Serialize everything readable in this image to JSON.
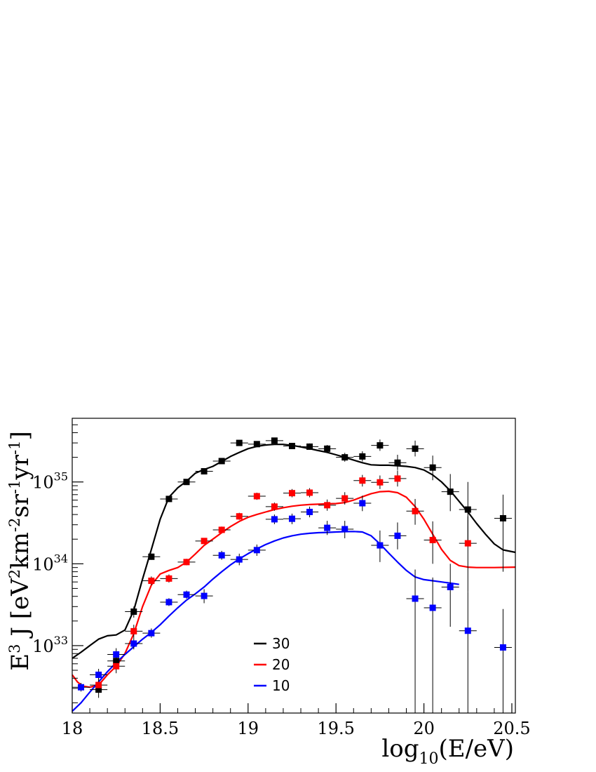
{
  "chart_data": {
    "type": "scatter",
    "title": "",
    "xlabel": {
      "main": "log",
      "sub": "10",
      "rest": "(E/eV)"
    },
    "ylabel": {
      "p1": "E",
      "p1sup": "3",
      "p2": " J [eV",
      "p2sup": "2",
      "p3": "km",
      "p3sup": "-2",
      "p4": "sr",
      "p4sup": "-1",
      "p5": "yr",
      "p5sup": "-1",
      "p6": "]"
    },
    "xlim": [
      18.0,
      20.52
    ],
    "ylim": [
      1.5e+32,
      6e+35
    ],
    "yscale": "log",
    "x_ticks": [
      {
        "value": 18.0,
        "label": "18"
      },
      {
        "value": 18.5,
        "label": "18.5"
      },
      {
        "value": 19.0,
        "label": "19"
      },
      {
        "value": 19.5,
        "label": "19.5"
      },
      {
        "value": 20.0,
        "label": "20"
      },
      {
        "value": 20.5,
        "label": "20.5"
      }
    ],
    "y_ticks": [
      {
        "value": 1e+33,
        "base": "10",
        "exp": "33"
      },
      {
        "value": 1e+34,
        "base": "10",
        "exp": "34"
      },
      {
        "value": 1e+35,
        "base": "10",
        "exp": "35"
      }
    ],
    "legend": {
      "placement": "bottom-center"
    },
    "series": [
      {
        "name": "30",
        "color": "#000000",
        "points": [
          {
            "x": 18.15,
            "y": 2.9e+32,
            "lo": 2.3e+32,
            "hi": 3.6e+32
          },
          {
            "x": 18.25,
            "y": 6.5e+32,
            "lo": 5.3e+32,
            "hi": 8e+32
          },
          {
            "x": 18.35,
            "y": 2.6e+33,
            "lo": 2.2e+33,
            "hi": 3e+33
          },
          {
            "x": 18.45,
            "y": 1.22e+34,
            "lo": 1.12e+34,
            "hi": 1.33e+34
          },
          {
            "x": 18.55,
            "y": 6.2e+34,
            "lo": 5.8e+34,
            "hi": 6.6e+34
          },
          {
            "x": 18.65,
            "y": 1e+35,
            "lo": 9.4e+34,
            "hi": 1.06e+35
          },
          {
            "x": 18.75,
            "y": 1.35e+35,
            "lo": 1.27e+35,
            "hi": 1.44e+35
          },
          {
            "x": 18.85,
            "y": 1.8e+35,
            "lo": 1.7e+35,
            "hi": 1.91e+35
          },
          {
            "x": 18.95,
            "y": 3e+35,
            "lo": 2.82e+35,
            "hi": 3.2e+35
          },
          {
            "x": 19.05,
            "y": 2.9e+35,
            "lo": 2.72e+35,
            "hi": 3.1e+35
          },
          {
            "x": 19.15,
            "y": 3.2e+35,
            "lo": 2.98e+35,
            "hi": 3.45e+35
          },
          {
            "x": 19.25,
            "y": 2.75e+35,
            "lo": 2.53e+35,
            "hi": 3e+35
          },
          {
            "x": 19.35,
            "y": 2.7e+35,
            "lo": 2.47e+35,
            "hi": 2.96e+35
          },
          {
            "x": 19.45,
            "y": 2.55e+35,
            "lo": 2.3e+35,
            "hi": 2.83e+35
          },
          {
            "x": 19.55,
            "y": 2e+35,
            "lo": 1.77e+35,
            "hi": 2.27e+35
          },
          {
            "x": 19.65,
            "y": 2.05e+35,
            "lo": 1.78e+35,
            "hi": 2.37e+35
          },
          {
            "x": 19.75,
            "y": 2.8e+35,
            "lo": 2.4e+35,
            "hi": 3.3e+35
          },
          {
            "x": 19.85,
            "y": 1.72e+35,
            "lo": 1.4e+35,
            "hi": 2.15e+35
          },
          {
            "x": 19.95,
            "y": 2.55e+35,
            "lo": 2.05e+35,
            "hi": 3.2e+35
          },
          {
            "x": 20.05,
            "y": 1.5e+35,
            "lo": 1.05e+35,
            "hi": 2.1e+35
          },
          {
            "x": 20.15,
            "y": 7.6e+34,
            "lo": 4.4e+34,
            "hi": 1.25e+35
          },
          {
            "x": 20.25,
            "y": 4.6e+34,
            "lo": 1.8e+34,
            "hi": 1e+35
          },
          {
            "x": 20.45,
            "y": 3.6e+34,
            "lo": 8e+33,
            "hi": 7e+34
          }
        ],
        "curve": [
          [
            18.0,
            7e+32
          ],
          [
            18.05,
            8.3e+32
          ],
          [
            18.1,
            1e+33
          ],
          [
            18.15,
            1.2e+33
          ],
          [
            18.2,
            1.32e+33
          ],
          [
            18.25,
            1.35e+33
          ],
          [
            18.3,
            1.55e+33
          ],
          [
            18.35,
            2.7e+33
          ],
          [
            18.4,
            6.5e+33
          ],
          [
            18.45,
            1.5e+34
          ],
          [
            18.5,
            3.5e+34
          ],
          [
            18.55,
            6.5e+34
          ],
          [
            18.6,
            8.5e+34
          ],
          [
            18.65,
            1.02e+35
          ],
          [
            18.7,
            1.28e+35
          ],
          [
            18.75,
            1.42e+35
          ],
          [
            18.8,
            1.55e+35
          ],
          [
            18.85,
            1.78e+35
          ],
          [
            18.9,
            2.05e+35
          ],
          [
            18.95,
            2.3e+35
          ],
          [
            19.0,
            2.55e+35
          ],
          [
            19.05,
            2.72e+35
          ],
          [
            19.1,
            2.83e+35
          ],
          [
            19.15,
            2.88e+35
          ],
          [
            19.2,
            2.88e+35
          ],
          [
            19.25,
            2.8e+35
          ],
          [
            19.3,
            2.68e+35
          ],
          [
            19.35,
            2.55e+35
          ],
          [
            19.4,
            2.42e+35
          ],
          [
            19.45,
            2.3e+35
          ],
          [
            19.5,
            2.15e+35
          ],
          [
            19.55,
            2e+35
          ],
          [
            19.6,
            1.85e+35
          ],
          [
            19.65,
            1.72e+35
          ],
          [
            19.7,
            1.62e+35
          ],
          [
            19.75,
            1.6e+35
          ],
          [
            19.8,
            1.6e+35
          ],
          [
            19.85,
            1.58e+35
          ],
          [
            19.9,
            1.55e+35
          ],
          [
            19.95,
            1.5e+35
          ],
          [
            20.0,
            1.4e+35
          ],
          [
            20.05,
            1.22e+35
          ],
          [
            20.1,
            1e+35
          ],
          [
            20.15,
            7.8e+34
          ],
          [
            20.2,
            5.8e+34
          ],
          [
            20.25,
            4.3e+34
          ],
          [
            20.3,
            3.1e+34
          ],
          [
            20.35,
            2.3e+34
          ],
          [
            20.4,
            1.75e+34
          ],
          [
            20.45,
            1.48e+34
          ],
          [
            20.52,
            1.38e+34
          ]
        ]
      },
      {
        "name": "20",
        "color": "#ff0000",
        "points": [
          {
            "x": 18.15,
            "y": 3.3e+32,
            "lo": 2.7e+32,
            "hi": 4e+32
          },
          {
            "x": 18.25,
            "y": 5.6e+32,
            "lo": 4.6e+32,
            "hi": 6.8e+32
          },
          {
            "x": 18.35,
            "y": 1.5e+33,
            "lo": 1.25e+33,
            "hi": 1.8e+33
          },
          {
            "x": 18.45,
            "y": 6.2e+33,
            "lo": 5.5e+33,
            "hi": 7e+33
          },
          {
            "x": 18.55,
            "y": 6.6e+33,
            "lo": 5.9e+33,
            "hi": 7.4e+33
          },
          {
            "x": 18.65,
            "y": 1.05e+34,
            "lo": 9.6e+33,
            "hi": 1.15e+34
          },
          {
            "x": 18.75,
            "y": 1.9e+34,
            "lo": 1.75e+34,
            "hi": 2.05e+34
          },
          {
            "x": 18.85,
            "y": 2.6e+34,
            "lo": 2.38e+34,
            "hi": 2.85e+34
          },
          {
            "x": 18.95,
            "y": 3.8e+34,
            "lo": 3.45e+34,
            "hi": 4.2e+34
          },
          {
            "x": 19.05,
            "y": 6.7e+34,
            "lo": 6.05e+34,
            "hi": 7.4e+34
          },
          {
            "x": 19.15,
            "y": 5e+34,
            "lo": 4.45e+34,
            "hi": 5.6e+34
          },
          {
            "x": 19.25,
            "y": 7.3e+34,
            "lo": 6.5e+34,
            "hi": 8.2e+34
          },
          {
            "x": 19.35,
            "y": 7.4e+34,
            "lo": 6.5e+34,
            "hi": 8.4e+34
          },
          {
            "x": 19.45,
            "y": 5.2e+34,
            "lo": 4.45e+34,
            "hi": 6.1e+34
          },
          {
            "x": 19.55,
            "y": 6.3e+34,
            "lo": 5.3e+34,
            "hi": 7.5e+34
          },
          {
            "x": 19.65,
            "y": 1.04e+35,
            "lo": 8.8e+34,
            "hi": 1.22e+35
          },
          {
            "x": 19.75,
            "y": 9.9e+34,
            "lo": 8.2e+34,
            "hi": 1.2e+35
          },
          {
            "x": 19.85,
            "y": 1.1e+35,
            "lo": 8.8e+34,
            "hi": 1.38e+35
          },
          {
            "x": 19.95,
            "y": 4.4e+34,
            "lo": 3e+34,
            "hi": 6.2e+34
          },
          {
            "x": 20.05,
            "y": 1.95e+34,
            "lo": 1e+34,
            "hi": 3.3e+34
          },
          {
            "x": 20.25,
            "y": 1.78e+34,
            "lo": 4.5e+33,
            "hi": 3.8e+34
          }
        ],
        "curve": [
          [
            18.0,
            4.4e+32
          ],
          [
            18.03,
            3.6e+32
          ],
          [
            18.06,
            3.2e+32
          ],
          [
            18.1,
            3.1e+32
          ],
          [
            18.15,
            3.3e+32
          ],
          [
            18.2,
            4.4e+32
          ],
          [
            18.25,
            5.6e+32
          ],
          [
            18.3,
            8e+32
          ],
          [
            18.35,
            1.4e+33
          ],
          [
            18.4,
            3e+33
          ],
          [
            18.45,
            5.5e+33
          ],
          [
            18.5,
            7.5e+33
          ],
          [
            18.55,
            8.3e+33
          ],
          [
            18.6,
            9e+33
          ],
          [
            18.65,
            1.05e+34
          ],
          [
            18.7,
            1.32e+34
          ],
          [
            18.75,
            1.68e+34
          ],
          [
            18.8,
            2e+34
          ],
          [
            18.85,
            2.4e+34
          ],
          [
            18.9,
            2.85e+34
          ],
          [
            18.95,
            3.3e+34
          ],
          [
            19.0,
            3.7e+34
          ],
          [
            19.05,
            4e+34
          ],
          [
            19.1,
            4.3e+34
          ],
          [
            19.15,
            4.6e+34
          ],
          [
            19.2,
            4.85e+34
          ],
          [
            19.25,
            5.05e+34
          ],
          [
            19.3,
            5.2e+34
          ],
          [
            19.35,
            5.3e+34
          ],
          [
            19.4,
            5.35e+34
          ],
          [
            19.45,
            5.4e+34
          ],
          [
            19.5,
            5.45e+34
          ],
          [
            19.55,
            5.6e+34
          ],
          [
            19.6,
            6e+34
          ],
          [
            19.65,
            6.6e+34
          ],
          [
            19.7,
            7.2e+34
          ],
          [
            19.75,
            7.6e+34
          ],
          [
            19.8,
            7.7e+34
          ],
          [
            19.85,
            7.4e+34
          ],
          [
            19.9,
            6.5e+34
          ],
          [
            19.95,
            5e+34
          ],
          [
            20.0,
            3.5e+34
          ],
          [
            20.05,
            2.3e+34
          ],
          [
            20.1,
            1.5e+34
          ],
          [
            20.15,
            1.1e+34
          ],
          [
            20.2,
            9.5e+33
          ],
          [
            20.25,
            9.1e+33
          ],
          [
            20.3,
            9e+33
          ],
          [
            20.4,
            9e+33
          ],
          [
            20.52,
            9.1e+33
          ]
        ]
      },
      {
        "name": "10",
        "color": "#0000ff",
        "points": [
          {
            "x": 18.05,
            "y": 3.1e+32,
            "lo": 2.75e+32,
            "hi": 3.5e+32
          },
          {
            "x": 18.15,
            "y": 4.4e+32,
            "lo": 3.7e+32,
            "hi": 5.2e+32
          },
          {
            "x": 18.25,
            "y": 7.8e+32,
            "lo": 6.5e+32,
            "hi": 9.3e+32
          },
          {
            "x": 18.35,
            "y": 1.06e+33,
            "lo": 9e+32,
            "hi": 1.25e+33
          },
          {
            "x": 18.45,
            "y": 1.42e+33,
            "lo": 1.25e+33,
            "hi": 1.62e+33
          },
          {
            "x": 18.55,
            "y": 3.4e+33,
            "lo": 3.05e+33,
            "hi": 3.8e+33
          },
          {
            "x": 18.65,
            "y": 4.2e+33,
            "lo": 3.75e+33,
            "hi": 4.7e+33
          },
          {
            "x": 18.75,
            "y": 4.05e+33,
            "lo": 3.3e+33,
            "hi": 4.9e+33
          },
          {
            "x": 18.85,
            "y": 1.27e+34,
            "lo": 1.12e+34,
            "hi": 1.44e+34
          },
          {
            "x": 18.95,
            "y": 1.13e+34,
            "lo": 9.6e+33,
            "hi": 1.33e+34
          },
          {
            "x": 19.05,
            "y": 1.47e+34,
            "lo": 1.25e+34,
            "hi": 1.72e+34
          },
          {
            "x": 19.15,
            "y": 3.5e+34,
            "lo": 3.05e+34,
            "hi": 4e+34
          },
          {
            "x": 19.25,
            "y": 3.55e+34,
            "lo": 3.05e+34,
            "hi": 4.1e+34
          },
          {
            "x": 19.35,
            "y": 4.3e+34,
            "lo": 3.7e+34,
            "hi": 5e+34
          },
          {
            "x": 19.45,
            "y": 2.75e+34,
            "lo": 2.25e+34,
            "hi": 3.35e+34
          },
          {
            "x": 19.55,
            "y": 2.65e+34,
            "lo": 2.05e+34,
            "hi": 3.35e+34
          },
          {
            "x": 19.65,
            "y": 5.5e+34,
            "lo": 4.4e+34,
            "hi": 6.8e+34
          },
          {
            "x": 19.75,
            "y": 1.68e+34,
            "lo": 1.05e+34,
            "hi": 2.55e+34
          },
          {
            "x": 19.85,
            "y": 2.2e+34,
            "lo": 1.5e+34,
            "hi": 3.2e+34
          },
          {
            "x": 19.95,
            "y": 3.75e+33,
            "lo": 1.5e+32,
            "hi": 8.5e+33
          },
          {
            "x": 20.05,
            "y": 2.9e+33,
            "lo": 1.5e+32,
            "hi": 6.8e+33
          },
          {
            "x": 20.15,
            "y": 5.2e+33,
            "lo": 1.7e+33,
            "hi": 1e+34
          },
          {
            "x": 20.25,
            "y": 1.52e+33,
            "lo": 1.5e+32,
            "hi": 4.5e+33
          },
          {
            "x": 20.45,
            "y": 9.5e+32,
            "lo": 1.5e+32,
            "hi": 2.8e+33
          }
        ],
        "curve": [
          [
            18.0,
            1.58e+32
          ],
          [
            18.05,
            2e+32
          ],
          [
            18.1,
            2.7e+32
          ],
          [
            18.15,
            3.6e+32
          ],
          [
            18.2,
            4.8e+32
          ],
          [
            18.25,
            6.2e+32
          ],
          [
            18.3,
            7.8e+32
          ],
          [
            18.35,
            9.7e+32
          ],
          [
            18.4,
            1.2e+33
          ],
          [
            18.45,
            1.45e+33
          ],
          [
            18.5,
            1.8e+33
          ],
          [
            18.55,
            2.3e+33
          ],
          [
            18.6,
            2.9e+33
          ],
          [
            18.65,
            3.6e+33
          ],
          [
            18.7,
            4.3e+33
          ],
          [
            18.75,
            5.2e+33
          ],
          [
            18.8,
            6.5e+33
          ],
          [
            18.85,
            8e+33
          ],
          [
            18.9,
            9.7e+33
          ],
          [
            18.95,
            1.15e+34
          ],
          [
            19.0,
            1.33e+34
          ],
          [
            19.05,
            1.52e+34
          ],
          [
            19.1,
            1.72e+34
          ],
          [
            19.15,
            1.9e+34
          ],
          [
            19.2,
            2.07e+34
          ],
          [
            19.25,
            2.2e+34
          ],
          [
            19.3,
            2.3e+34
          ],
          [
            19.35,
            2.36e+34
          ],
          [
            19.4,
            2.4e+34
          ],
          [
            19.45,
            2.42e+34
          ],
          [
            19.5,
            2.45e+34
          ],
          [
            19.55,
            2.47e+34
          ],
          [
            19.6,
            2.48e+34
          ],
          [
            19.65,
            2.45e+34
          ],
          [
            19.7,
            2.2e+34
          ],
          [
            19.75,
            1.75e+34
          ],
          [
            19.8,
            1.35e+34
          ],
          [
            19.85,
            1.05e+34
          ],
          [
            19.9,
            8.3e+33
          ],
          [
            19.95,
            6.9e+33
          ],
          [
            20.0,
            6.4e+33
          ],
          [
            20.05,
            6.2e+33
          ],
          [
            20.1,
            6e+33
          ],
          [
            20.15,
            5.8e+33
          ],
          [
            20.2,
            5.6e+33
          ]
        ]
      }
    ]
  }
}
